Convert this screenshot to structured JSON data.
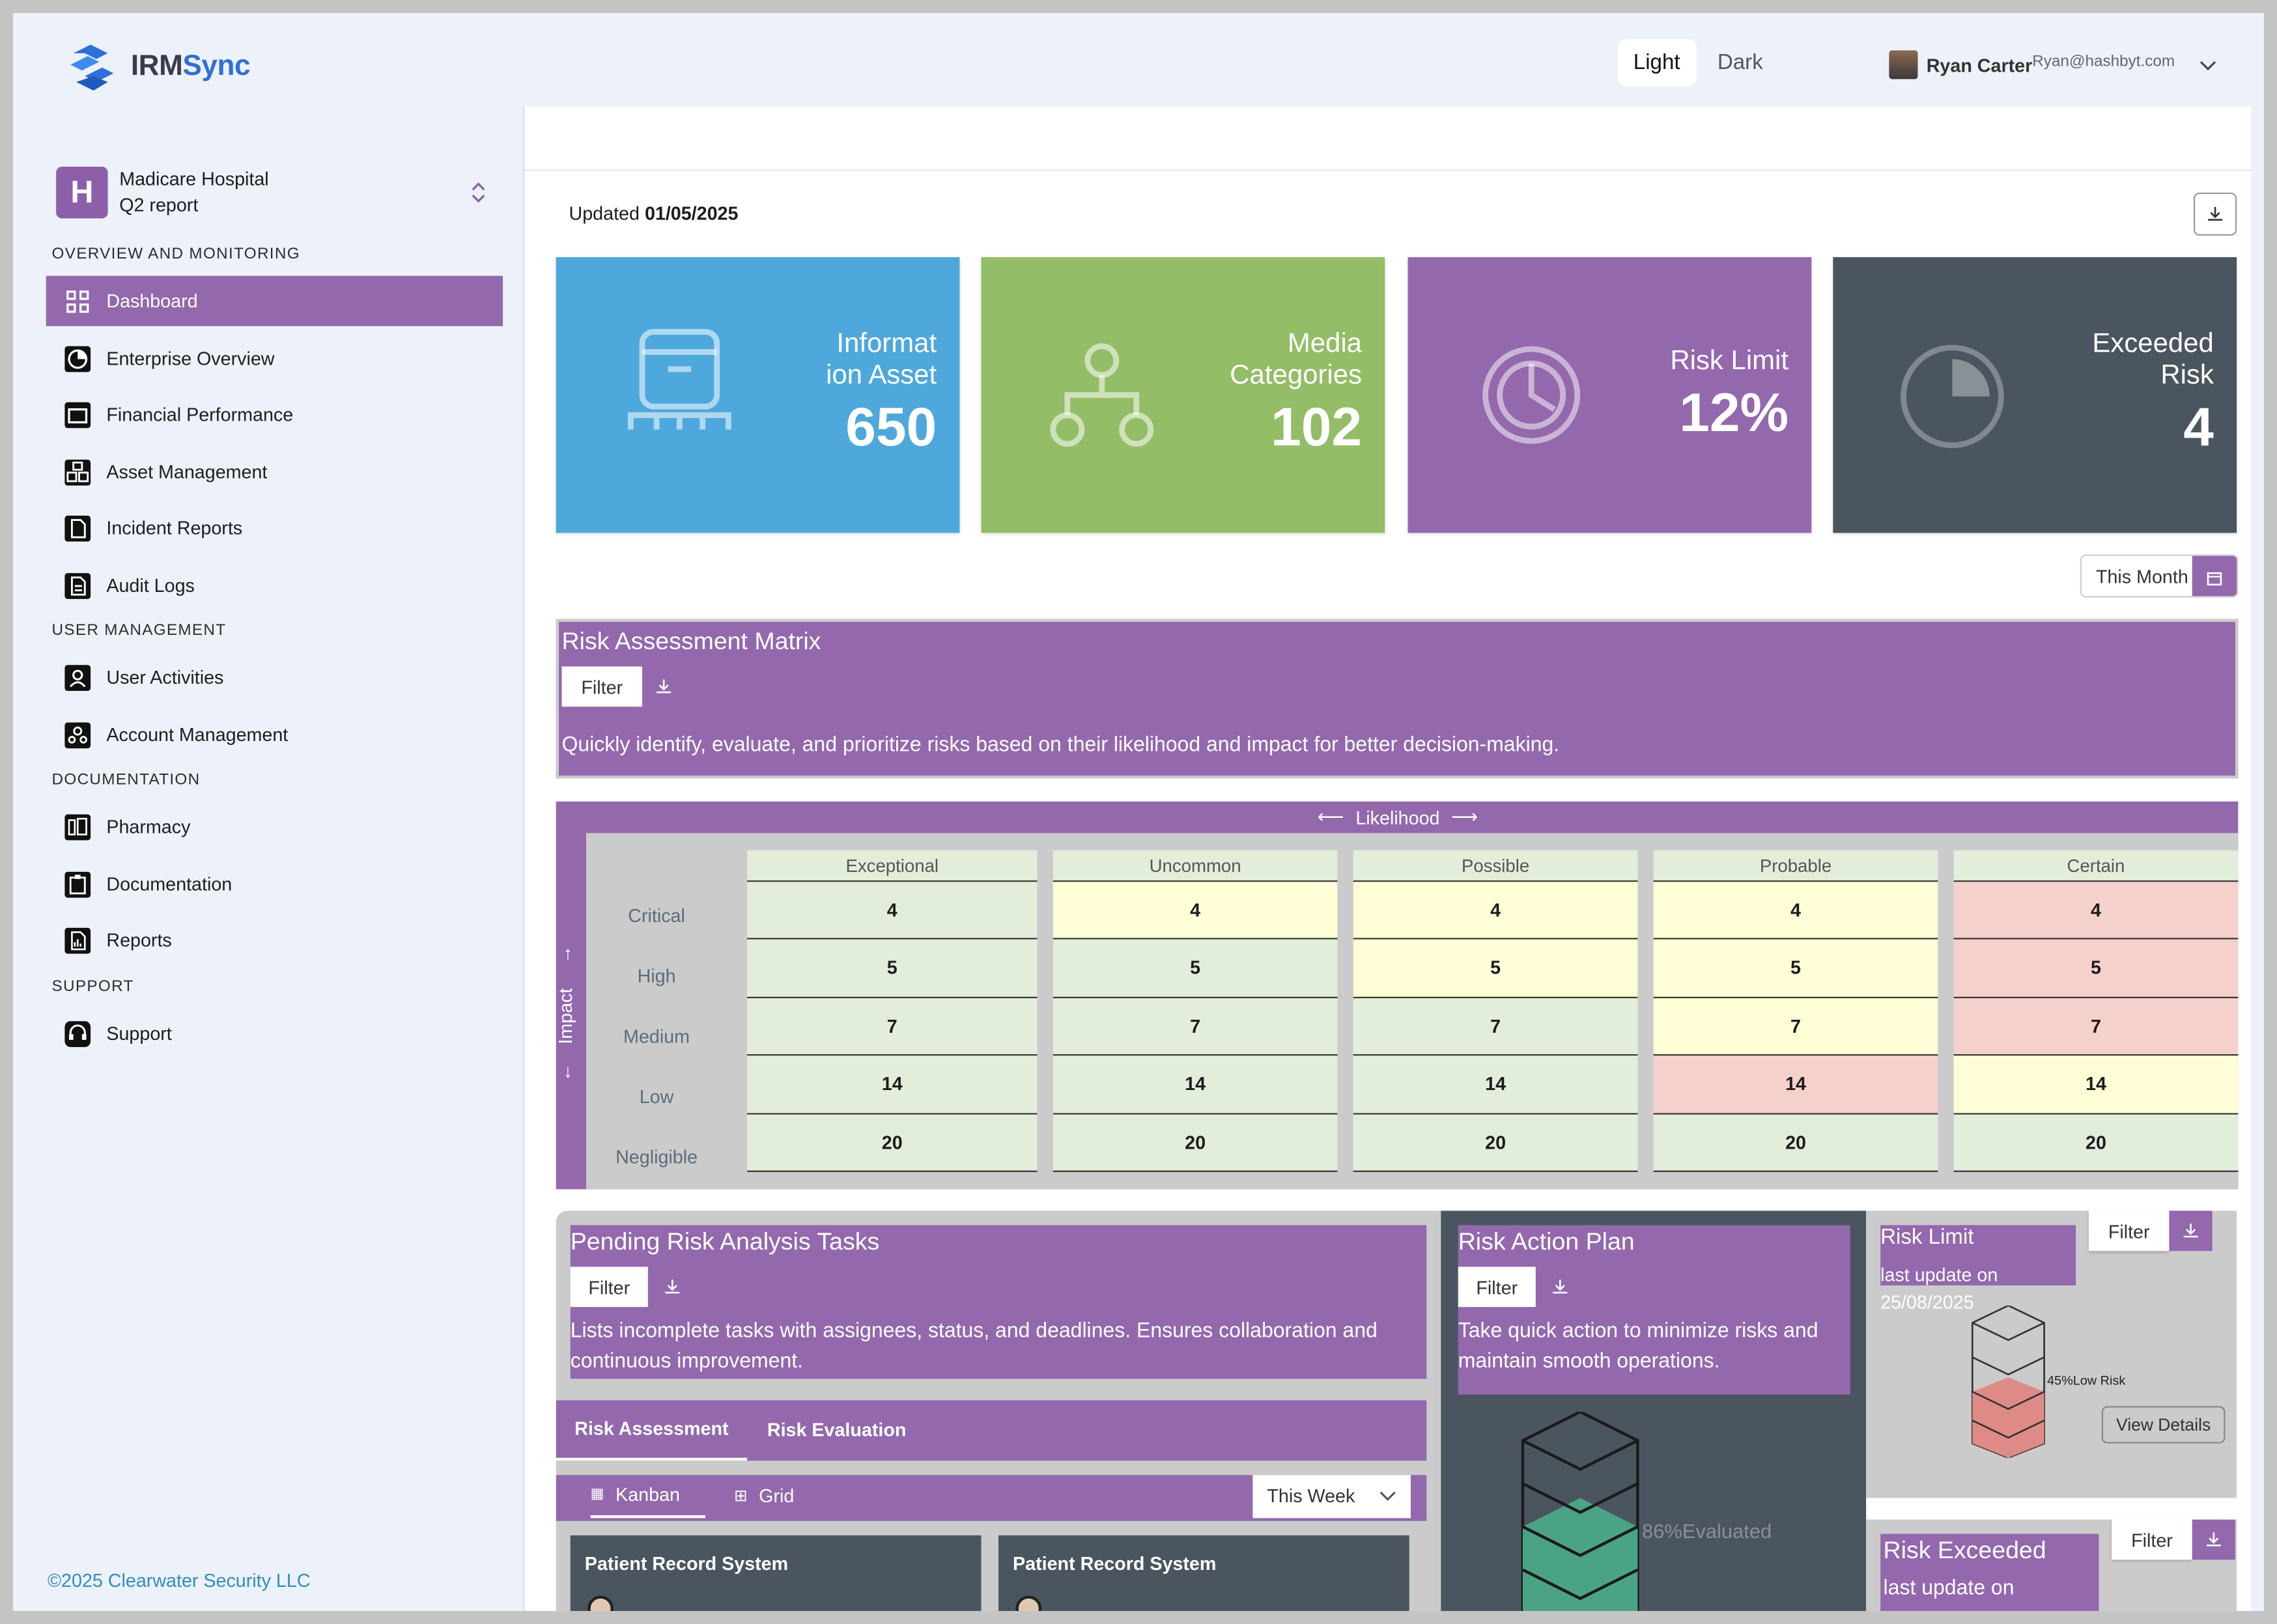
{
  "app": {
    "brand_a": "IRM",
    "brand_b": "Sync"
  },
  "theme": {
    "light": "Light",
    "dark": "Dark"
  },
  "user": {
    "name": "Ryan Carter",
    "email": "Ryan@hashbyt.com"
  },
  "org": {
    "initial": "H",
    "name": "Madicare Hospital",
    "report": "Q2 report"
  },
  "sidebar": {
    "sections": [
      {
        "title": "OVERVIEW AND MONITORING"
      },
      {
        "title": "USER MANAGEMENT"
      },
      {
        "title": "DOCUMENTATION"
      },
      {
        "title": "SUPPORT"
      }
    ],
    "items": [
      {
        "label": "Dashboard",
        "icon": "grid-icon"
      },
      {
        "label": "Enterprise Overview",
        "icon": "pie-icon"
      },
      {
        "label": "Financial Performance",
        "icon": "wallet-icon"
      },
      {
        "label": "Asset Management",
        "icon": "boxes-icon"
      },
      {
        "label": "Incident Reports",
        "icon": "file-icon"
      },
      {
        "label": "Audit Logs",
        "icon": "doc-icon"
      },
      {
        "label": "User Activities",
        "icon": "user-icon"
      },
      {
        "label": "Account Management",
        "icon": "users-icon"
      },
      {
        "label": "Pharmacy",
        "icon": "pharmacy-icon"
      },
      {
        "label": "Documentation",
        "icon": "clipboard-icon"
      },
      {
        "label": "Reports",
        "icon": "report-icon"
      },
      {
        "label": "Support",
        "icon": "headset-icon"
      }
    ],
    "footer": "©2025 Clearwater Security LLC"
  },
  "main": {
    "updated_label": "Updated",
    "updated_date": "01/05/2025",
    "cards": [
      {
        "title_1": "Informat",
        "title_2": "ion Asset",
        "value": "650",
        "color": "#4ea8dc"
      },
      {
        "title_1": "Media",
        "title_2": "Categories",
        "value": "102",
        "color": "#93bd66"
      },
      {
        "title_1": "Risk Limit",
        "title_2": "",
        "value": "12%",
        "color": "#9368ad"
      },
      {
        "title_1": "Exceeded",
        "title_2": "Risk",
        "value": "4",
        "color": "#4b555f"
      }
    ],
    "period": "This Month",
    "matrix": {
      "title": "Risk Assessment Matrix",
      "filter": "Filter",
      "desc": "Quickly identify, evaluate, and prioritize risks based on their likelihood and impact for better decision-making.",
      "likelihood": "Likelihood",
      "impact": "Impact",
      "rows": [
        "Critical",
        "High",
        "Medium",
        "Low",
        "Negligible"
      ],
      "cols": [
        "Exceptional",
        "Uncommon",
        "Possible",
        "Probable",
        "Certain"
      ],
      "values": [
        [
          "4",
          "4",
          "4",
          "4",
          "4"
        ],
        [
          "5",
          "5",
          "5",
          "5",
          "5"
        ],
        [
          "7",
          "7",
          "7",
          "7",
          "7"
        ],
        [
          "14",
          "14",
          "14",
          "14",
          "14"
        ],
        [
          "20",
          "20",
          "20",
          "20",
          "20"
        ]
      ]
    },
    "pending": {
      "title": "Pending Risk Analysis Tasks",
      "filter": "Filter",
      "desc": "Lists incomplete tasks with assignees, status, and deadlines. Ensures collaboration and continuous improvement.",
      "tab1": "Risk Assessment",
      "tab2": "Risk Evaluation",
      "view1": "Kanban",
      "view2": "Grid",
      "period": "This Week",
      "card1": "Patient Record System",
      "card2": "Patient Record System"
    },
    "action": {
      "title": "Risk Action Plan",
      "filter": "Filter",
      "desc": "Take quick action to minimize risks and maintain smooth operations.",
      "evaluated": "86%Evaluated"
    },
    "risk_limit": {
      "title": "Risk Limit",
      "update": "last update on",
      "date": "25/08/2025",
      "filter": "Filter",
      "label": "45%Low Risk",
      "details": "View Details"
    },
    "risk_exceeded": {
      "title": "Risk Exceeded",
      "update": "last update on",
      "filter": "Filter"
    }
  }
}
